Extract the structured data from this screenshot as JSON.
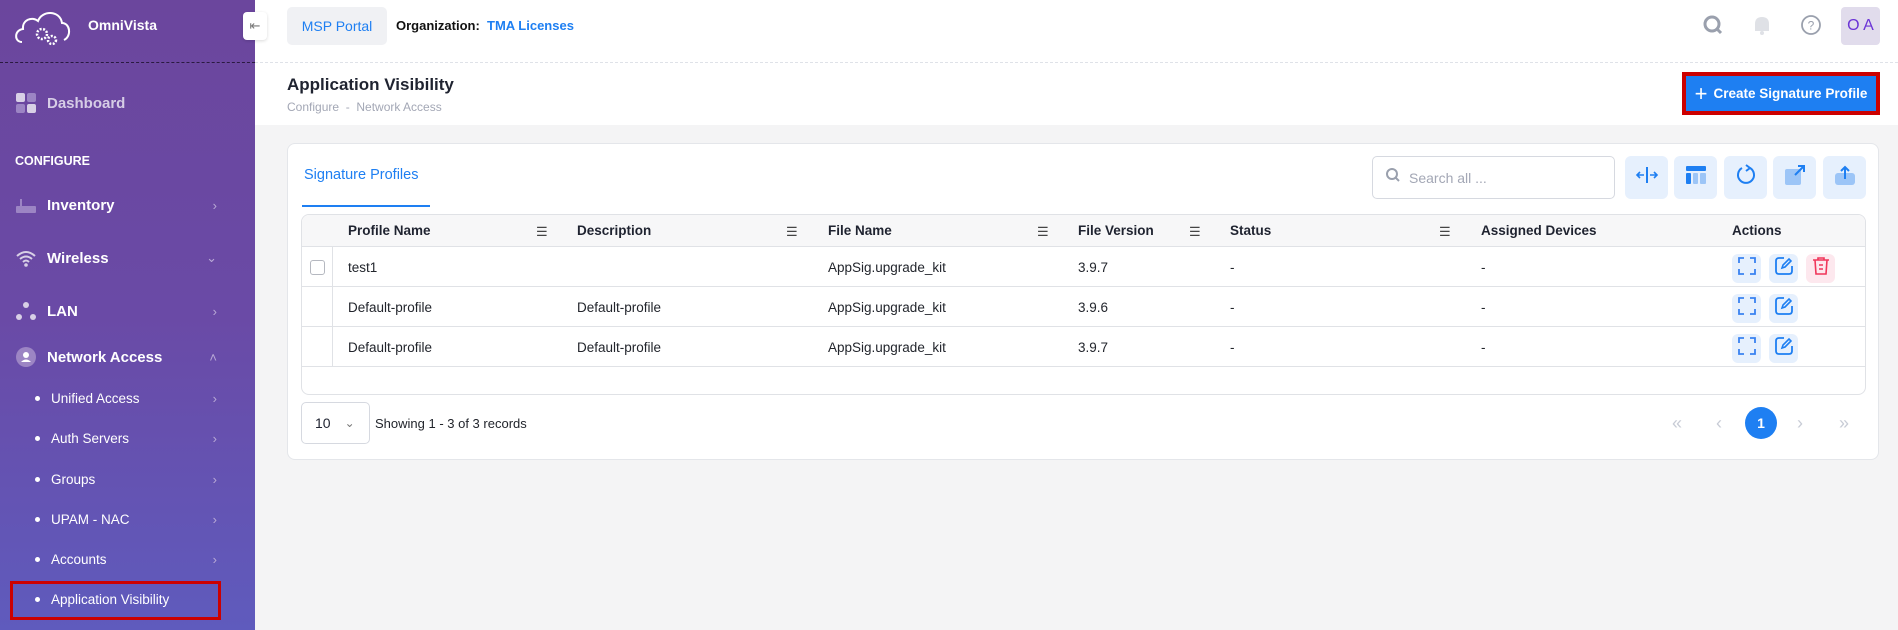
{
  "app": {
    "name": "OmniVista"
  },
  "sidebar": {
    "dashboard": "Dashboard",
    "section": "CONFIGURE",
    "items": [
      {
        "label": "Inventory"
      },
      {
        "label": "Wireless"
      },
      {
        "label": "LAN"
      },
      {
        "label": "Network Access"
      }
    ],
    "subitems": [
      {
        "label": "Unified Access"
      },
      {
        "label": "Auth Servers"
      },
      {
        "label": "Groups"
      },
      {
        "label": "UPAM - NAC"
      },
      {
        "label": "Accounts"
      },
      {
        "label": "Application Visibility"
      }
    ],
    "active": "Application Visibility"
  },
  "header": {
    "portal": "MSP Portal",
    "org_label": "Organization:",
    "org_value": "TMA Licenses",
    "avatar": "O A"
  },
  "page": {
    "title": "Application Visibility",
    "breadcrumb": "Configure  -  Network Access",
    "create_button": "Create Signature Profile"
  },
  "tabs": [
    {
      "label": "Signature Profiles",
      "active": true
    }
  ],
  "search": {
    "placeholder": "Search all ..."
  },
  "table": {
    "columns": [
      "Profile Name",
      "Description",
      "File Name",
      "File Version",
      "Status",
      "Assigned Devices",
      "Actions"
    ],
    "rows": [
      {
        "name": "test1",
        "description": "",
        "file": "AppSig.upgrade_kit",
        "version": "3.9.7",
        "status": "-",
        "devices": "-",
        "deletable": true
      },
      {
        "name": "Default-profile",
        "description": "Default-profile",
        "file": "AppSig.upgrade_kit",
        "version": "3.9.6",
        "status": "-",
        "devices": "-",
        "deletable": false
      },
      {
        "name": "Default-profile",
        "description": "Default-profile",
        "file": "AppSig.upgrade_kit",
        "version": "3.9.7",
        "status": "-",
        "devices": "-",
        "deletable": false
      }
    ]
  },
  "pagination": {
    "page_size": "10",
    "summary": "Showing 1 - 3 of 3 records",
    "current_page": "1"
  },
  "colors": {
    "accent": "#1e7ff2",
    "sidebar": "#6b469d",
    "delete": "#f0365a",
    "highlight": "#cc0000"
  }
}
